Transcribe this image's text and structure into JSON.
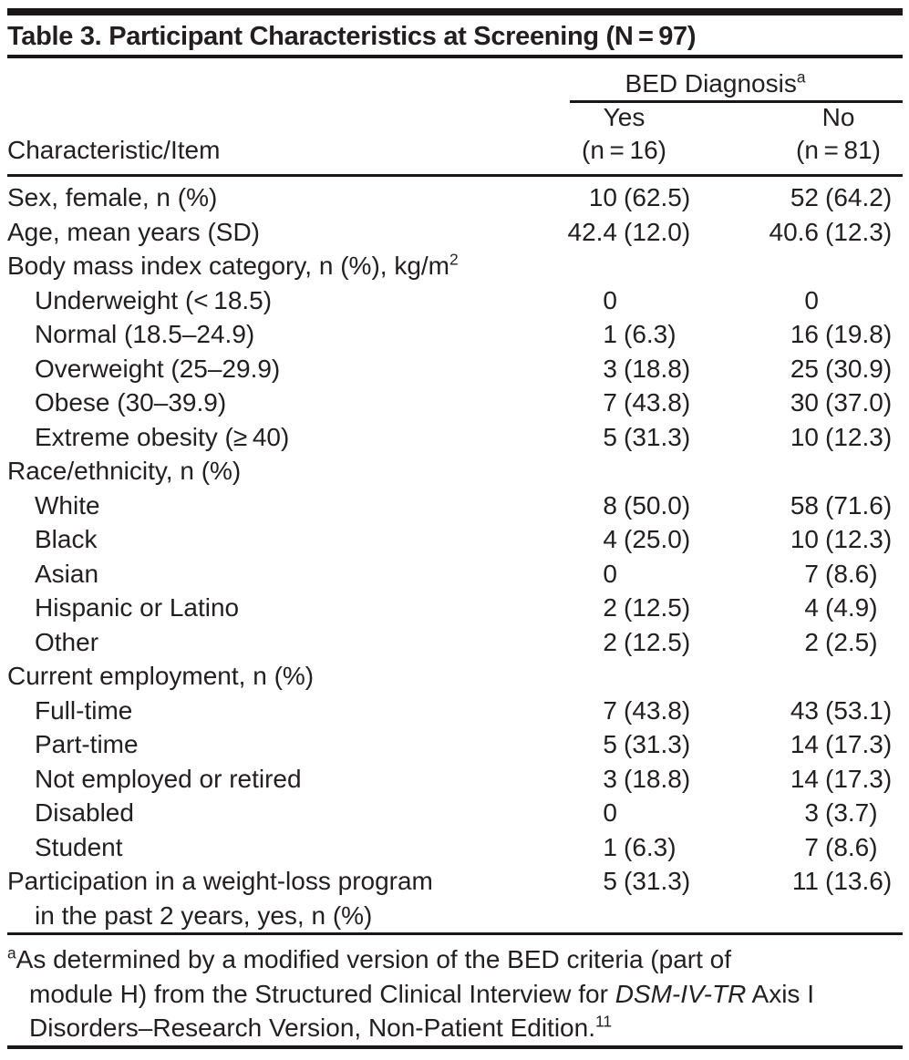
{
  "theme": {
    "ink": "#231f20",
    "rule": "#1a1617",
    "background": "#ffffff"
  },
  "title": "Table 3. Participant Characteristics at Screening (N = 97)",
  "header": {
    "col_label": "Characteristic/Item",
    "spanner": "BED Diagnosis",
    "spanner_sup": "a",
    "columns": [
      {
        "label": "Yes",
        "sub": "(n = 16)"
      },
      {
        "label": "No",
        "sub": "(n = 81)"
      }
    ]
  },
  "rows": [
    {
      "label": "Sex, female, n (%)",
      "yes_n": "10",
      "yes_pct": "(62.5)",
      "no_n": "52",
      "no_pct": "(64.2)"
    },
    {
      "label": "Age, mean years (SD)",
      "yes_n": "42.4",
      "yes_pct": "(12.0)",
      "no_n": "40.6",
      "no_pct": "(12.3)"
    },
    {
      "label": "Body mass index category, n (%), kg/m",
      "label_sup": "2"
    },
    {
      "label": "Underweight (< 18.5)",
      "indent": true,
      "yes_n": "0",
      "no_n": "0"
    },
    {
      "label": "Normal (18.5–24.9)",
      "indent": true,
      "yes_n": "1",
      "yes_pct": "(6.3)",
      "no_n": "16",
      "no_pct": "(19.8)"
    },
    {
      "label": "Overweight (25–29.9)",
      "indent": true,
      "yes_n": "3",
      "yes_pct": "(18.8)",
      "no_n": "25",
      "no_pct": "(30.9)"
    },
    {
      "label": "Obese (30–39.9)",
      "indent": true,
      "yes_n": "7",
      "yes_pct": "(43.8)",
      "no_n": "30",
      "no_pct": "(37.0)"
    },
    {
      "label": "Extreme obesity (≥ 40)",
      "indent": true,
      "yes_n": "5",
      "yes_pct": "(31.3)",
      "no_n": "10",
      "no_pct": "(12.3)"
    },
    {
      "label": "Race/ethnicity, n (%)"
    },
    {
      "label": "White",
      "indent": true,
      "yes_n": "8",
      "yes_pct": "(50.0)",
      "no_n": "58",
      "no_pct": "(71.6)"
    },
    {
      "label": "Black",
      "indent": true,
      "yes_n": "4",
      "yes_pct": "(25.0)",
      "no_n": "10",
      "no_pct": "(12.3)"
    },
    {
      "label": "Asian",
      "indent": true,
      "yes_n": "0",
      "no_n": "7",
      "no_pct": "(8.6)"
    },
    {
      "label": "Hispanic or Latino",
      "indent": true,
      "yes_n": "2",
      "yes_pct": "(12.5)",
      "no_n": "4",
      "no_pct": "(4.9)"
    },
    {
      "label": "Other",
      "indent": true,
      "yes_n": "2",
      "yes_pct": "(12.5)",
      "no_n": "2",
      "no_pct": "(2.5)"
    },
    {
      "label": "Current employment, n (%)"
    },
    {
      "label": "Full-time",
      "indent": true,
      "yes_n": "7",
      "yes_pct": "(43.8)",
      "no_n": "43",
      "no_pct": "(53.1)"
    },
    {
      "label": "Part-time",
      "indent": true,
      "yes_n": "5",
      "yes_pct": "(31.3)",
      "no_n": "14",
      "no_pct": "(17.3)"
    },
    {
      "label": "Not employed or retired",
      "indent": true,
      "yes_n": "3",
      "yes_pct": "(18.8)",
      "no_n": "14",
      "no_pct": "(17.3)"
    },
    {
      "label": "Disabled",
      "indent": true,
      "yes_n": "0",
      "no_n": "3",
      "no_pct": "(3.7)"
    },
    {
      "label": "Student",
      "indent": true,
      "yes_n": "1",
      "yes_pct": "(6.3)",
      "no_n": "7",
      "no_pct": "(8.6)"
    },
    {
      "label": "Participation in a weight-loss program",
      "label2": "in the past 2 years, yes, n (%)",
      "yes_n": "5",
      "yes_pct": "(31.3)",
      "no_n": "11",
      "no_pct": "(13.6)"
    }
  ],
  "footnote": {
    "marker": "a",
    "lines": [
      {
        "pre": "As determined by a modified version of the BED criteria (part of"
      },
      {
        "pre": "module H) from the Structured Clinical Interview for ",
        "italic": "DSM-IV-TR",
        "post": " Axis I"
      },
      {
        "pre": "Disorders–Research Version, Non-Patient Edition.",
        "sup": "11"
      }
    ]
  }
}
